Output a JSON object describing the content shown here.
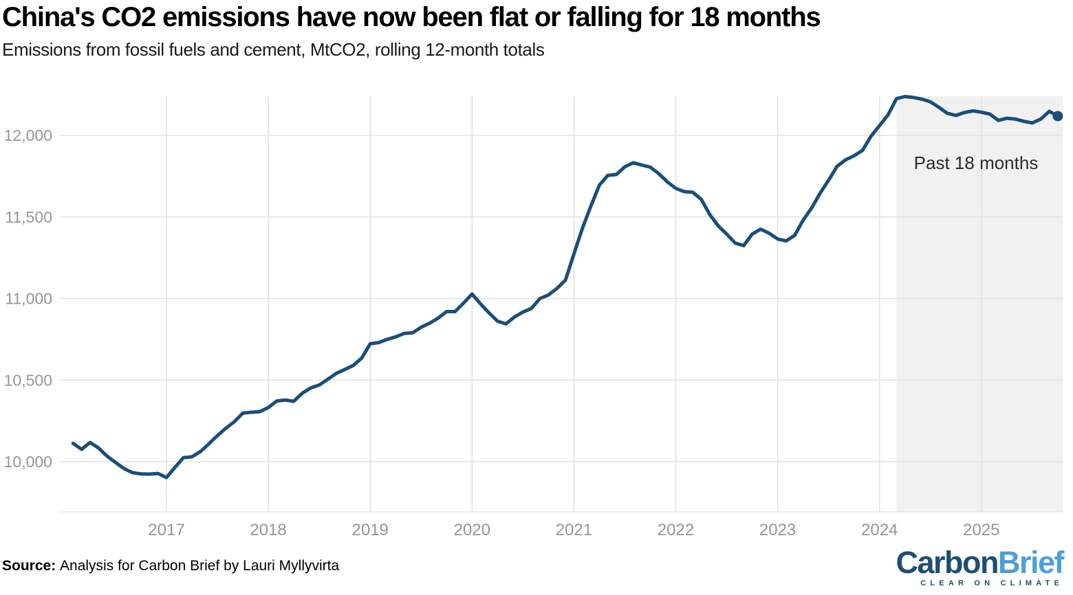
{
  "header": {
    "title": "China's CO2 emissions have now been flat or falling for 18 months",
    "subtitle": "Emissions from fossil fuels and cement, MtCO2, rolling 12-month totals"
  },
  "footer": {
    "source_label": "Source:",
    "source_text": "Analysis for Carbon Brief by Lauri Myllyvirta",
    "logo": {
      "part1": "Carbon",
      "part2": "Brief",
      "tagline": "CLEAR ON CLIMATE"
    }
  },
  "colors": {
    "line": "#1a4e79",
    "end_dot": "#1a4e79",
    "grid": "#e2e2e2",
    "axis_baseline": "#e8e8e8",
    "shade": "#f1f1f1",
    "axis_text": "#969696",
    "annotation_text": "#2b2b2b",
    "logo_dark_blue": "#1d4e74",
    "logo_light_blue": "#4da0d8"
  },
  "chart_data": {
    "type": "line",
    "title": "China's CO2 emissions have now been flat or falling for 18 months",
    "subtitle": "Emissions from fossil fuels and cement, MtCO2, rolling 12-month totals",
    "xlabel": "",
    "ylabel": "MtCO2, rolling 12-month totals",
    "grid": true,
    "legend": "none",
    "ylim": [
      9690,
      12240
    ],
    "xlim_years": [
      2015.99,
      2025.8
    ],
    "y_ticks": [
      {
        "value": 10000,
        "label": "10,000"
      },
      {
        "value": 10500,
        "label": "10,500"
      },
      {
        "value": 11000,
        "label": "11,000"
      },
      {
        "value": 11500,
        "label": "11,500"
      },
      {
        "value": 12000,
        "label": "12,000"
      }
    ],
    "x_ticks": [
      {
        "year": 2017,
        "label": "2017"
      },
      {
        "year": 2018,
        "label": "2018"
      },
      {
        "year": 2019,
        "label": "2019"
      },
      {
        "year": 2020,
        "label": "2020"
      },
      {
        "year": 2021,
        "label": "2021"
      },
      {
        "year": 2022,
        "label": "2022"
      },
      {
        "year": 2023,
        "label": "2023"
      },
      {
        "year": 2024,
        "label": "2024"
      },
      {
        "year": 2025,
        "label": "2025"
      }
    ],
    "shaded_region": {
      "label": "Past 18 months",
      "x0_year": 2024.167,
      "x1_year": 2025.8
    },
    "annotation": {
      "text": "Past 18 months"
    },
    "series": [
      {
        "name": "CO2 emissions from fossil fuels and cement (MtCO2, rolling 12-month total)",
        "color": "#1a4e79",
        "end_dot": true,
        "months": [
          "2016-02",
          "2016-03",
          "2016-04",
          "2016-05",
          "2016-06",
          "2016-07",
          "2016-08",
          "2016-09",
          "2016-10",
          "2016-11",
          "2016-12",
          "2017-01",
          "2017-02",
          "2017-03",
          "2017-04",
          "2017-05",
          "2017-06",
          "2017-07",
          "2017-08",
          "2017-09",
          "2017-10",
          "2017-11",
          "2017-12",
          "2018-01",
          "2018-02",
          "2018-03",
          "2018-04",
          "2018-05",
          "2018-06",
          "2018-07",
          "2018-08",
          "2018-09",
          "2018-10",
          "2018-11",
          "2018-12",
          "2019-01",
          "2019-02",
          "2019-03",
          "2019-04",
          "2019-05",
          "2019-06",
          "2019-07",
          "2019-08",
          "2019-09",
          "2019-10",
          "2019-11",
          "2019-12",
          "2020-01",
          "2020-02",
          "2020-03",
          "2020-04",
          "2020-05",
          "2020-06",
          "2020-07",
          "2020-08",
          "2020-09",
          "2020-10",
          "2020-11",
          "2020-12",
          "2021-01",
          "2021-02",
          "2021-03",
          "2021-04",
          "2021-05",
          "2021-06",
          "2021-07",
          "2021-08",
          "2021-09",
          "2021-10",
          "2021-11",
          "2021-12",
          "2022-01",
          "2022-02",
          "2022-03",
          "2022-04",
          "2022-05",
          "2022-06",
          "2022-07",
          "2022-08",
          "2022-09",
          "2022-10",
          "2022-11",
          "2022-12",
          "2023-01",
          "2023-02",
          "2023-03",
          "2023-04",
          "2023-05",
          "2023-06",
          "2023-07",
          "2023-08",
          "2023-09",
          "2023-10",
          "2023-11",
          "2023-12",
          "2024-01",
          "2024-02",
          "2024-03",
          "2024-04",
          "2024-05",
          "2024-06",
          "2024-07",
          "2024-08",
          "2024-09",
          "2024-10",
          "2024-11",
          "2024-12",
          "2025-01",
          "2025-02",
          "2025-03",
          "2025-04",
          "2025-05",
          "2025-06",
          "2025-07",
          "2025-08",
          "2025-09",
          "2025-10"
        ],
        "values": [
          10113,
          10076,
          10118,
          10084,
          10034,
          9996,
          9958,
          9933,
          9925,
          9924,
          9928,
          9903,
          9965,
          10025,
          10030,
          10062,
          10110,
          10160,
          10205,
          10245,
          10298,
          10303,
          10307,
          10332,
          10372,
          10378,
          10370,
          10420,
          10452,
          10470,
          10505,
          10541,
          10565,
          10590,
          10635,
          10723,
          10730,
          10750,
          10765,
          10786,
          10790,
          10824,
          10849,
          10880,
          10920,
          10920,
          10972,
          11028,
          10967,
          10912,
          10861,
          10845,
          10887,
          10917,
          10940,
          11000,
          11022,
          11062,
          11113,
          11273,
          11430,
          11567,
          11695,
          11755,
          11760,
          11807,
          11832,
          11818,
          11805,
          11765,
          11715,
          11675,
          11655,
          11651,
          11608,
          11515,
          11445,
          11395,
          11340,
          11324,
          11395,
          11425,
          11400,
          11365,
          11353,
          11387,
          11480,
          11555,
          11645,
          11725,
          11810,
          11850,
          11875,
          11908,
          11995,
          12060,
          12125,
          12225,
          12238,
          12232,
          12222,
          12205,
          12172,
          12135,
          12122,
          12140,
          12150,
          12142,
          12130,
          12092,
          12105,
          12100,
          12086,
          12076,
          12100,
          12147,
          12118
        ]
      }
    ]
  }
}
